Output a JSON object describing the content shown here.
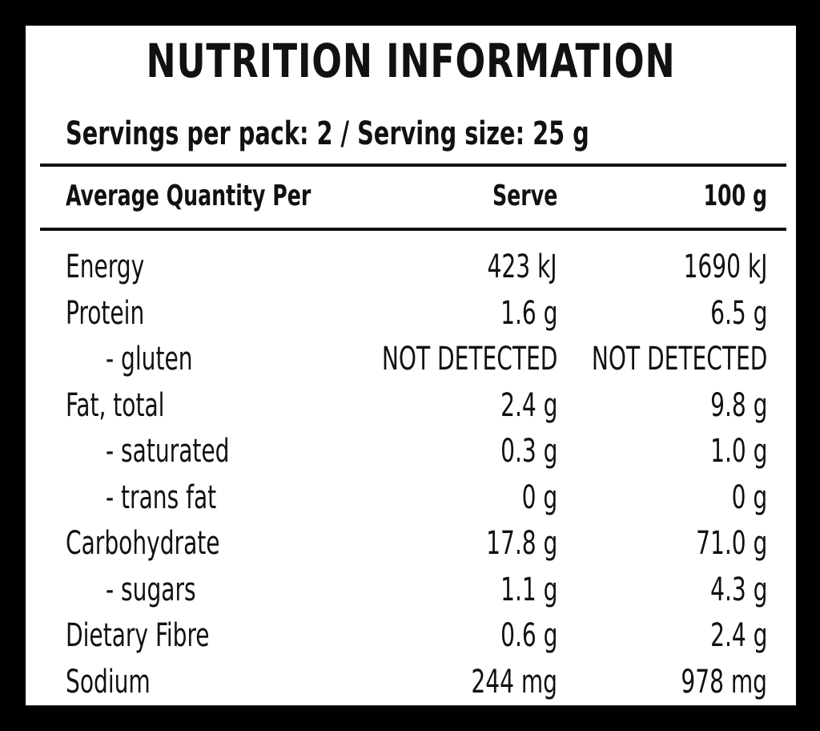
{
  "header": {
    "title": "NUTRITION INFORMATION",
    "servings": "Servings per pack: 2 / Serving size: 25 g"
  },
  "table": {
    "columns": [
      "Average Quantity Per",
      "Serve",
      "100 g"
    ],
    "rows": [
      [
        "Energy",
        "423 kJ",
        "1690 kJ"
      ],
      [
        "Protein",
        "1.6 g",
        "6.5 g"
      ],
      [
        "- gluten",
        "NOT DETECTED",
        "NOT DETECTED"
      ],
      [
        "Fat, total",
        "2.4 g",
        "9.8 g"
      ],
      [
        "- saturated",
        "0.3 g",
        "1.0 g"
      ],
      [
        "- trans fat",
        "0 g",
        "0 g"
      ],
      [
        "Carbohydrate",
        "17.8 g",
        "71.0 g"
      ],
      [
        "- sugars",
        "1.1 g",
        "4.3 g"
      ],
      [
        "Dietary Fibre",
        "0.6 g",
        "2.4 g"
      ],
      [
        "Sodium",
        "244 mg",
        "978 mg"
      ]
    ]
  }
}
